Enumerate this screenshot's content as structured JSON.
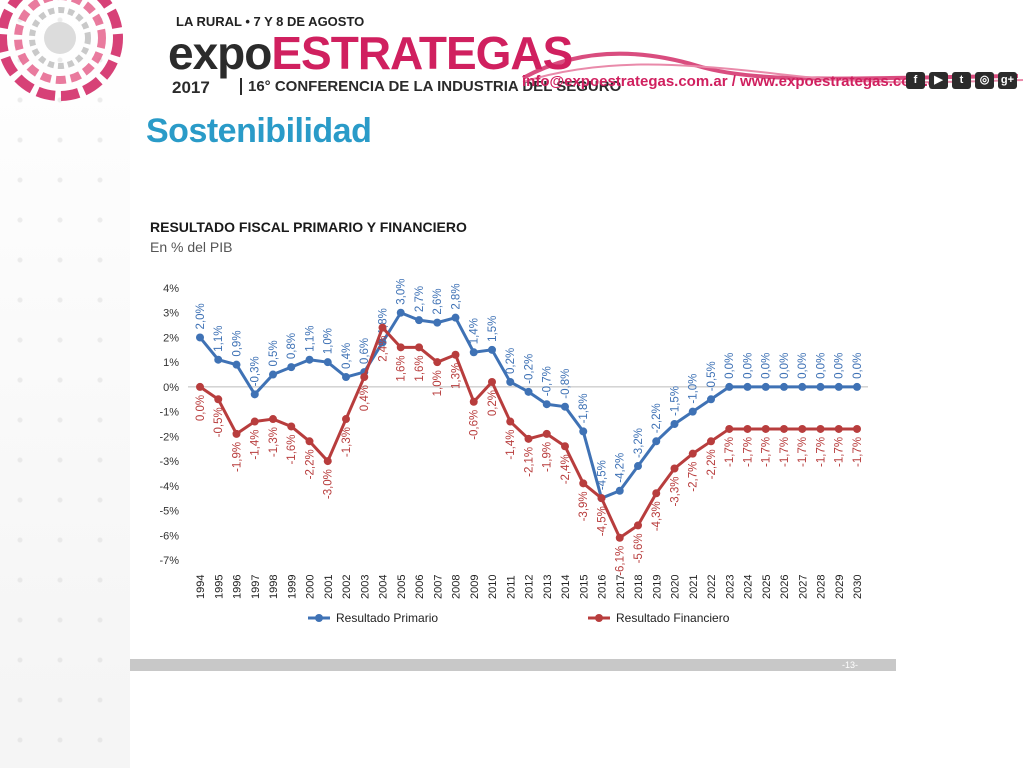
{
  "header": {
    "event_date": "LA RURAL • 7 Y 8 DE AGOSTO",
    "brand_expo": "expo",
    "brand_estrategas": "ESTRATEGAS",
    "year": "2017",
    "subtitle": "16° CONFERENCIA DE LA INDUSTRIA DEL SEGURO",
    "contact": "info@expoestrategas.com.ar / www.expoestrategas.com.ar",
    "social_icons": [
      "facebook-icon",
      "youtube-icon",
      "twitter-icon",
      "instagram-icon",
      "googleplus-icon"
    ],
    "social_glyphs": [
      "f",
      "▶",
      "t",
      "◎",
      "g+"
    ]
  },
  "page_title": "Sostenibilidad",
  "footer": {
    "page_number": "-13-"
  },
  "colors": {
    "primary_series": "#3f72b5",
    "financial_series": "#b83d3d",
    "title": "#2a9bc8",
    "brand": "#d0205f"
  },
  "chart_data": {
    "type": "line",
    "title": "RESULTADO FISCAL PRIMARIO Y FINANCIERO",
    "subtitle": "En % del PIB",
    "xlabel": "",
    "ylabel": "",
    "ylim": [
      -7,
      4
    ],
    "yticks": [
      "4%",
      "3%",
      "2%",
      "1%",
      "0%",
      "-1%",
      "-2%",
      "-3%",
      "-4%",
      "-5%",
      "-6%",
      "-7%"
    ],
    "grid": false,
    "legend": "bottom",
    "categories": [
      "1994",
      "1995",
      "1996",
      "1997",
      "1998",
      "1999",
      "2000",
      "2001",
      "2002",
      "2003",
      "2004",
      "2005",
      "2006",
      "2007",
      "2008",
      "2009",
      "2010",
      "2011",
      "2012",
      "2013",
      "2014",
      "2015",
      "2016",
      "2017",
      "2018",
      "2019",
      "2020",
      "2021",
      "2022",
      "2023",
      "2024",
      "2025",
      "2026",
      "2027",
      "2028",
      "2029",
      "2030"
    ],
    "series": [
      {
        "name": "Resultado Primario",
        "values": [
          2.0,
          1.1,
          0.9,
          -0.3,
          0.5,
          0.8,
          1.1,
          1.0,
          0.4,
          0.6,
          1.8,
          3.0,
          2.7,
          2.6,
          2.8,
          1.4,
          1.5,
          0.2,
          -0.2,
          -0.7,
          -0.8,
          -1.8,
          -4.5,
          -4.2,
          -3.2,
          -2.2,
          -1.5,
          -1.0,
          -0.5,
          0.0,
          0.0,
          0.0,
          0.0,
          0.0,
          0.0,
          0.0,
          0.0
        ],
        "labels": [
          "2,0%",
          "1,1%",
          "0,9%",
          "-0,3%",
          "0,5%",
          "0,8%",
          "1,1%",
          "1,0%",
          "0,4%",
          "0,6%",
          "1,8%",
          "3,0%",
          "2,7%",
          "2,6%",
          "2,8%",
          "1,4%",
          "1,5%",
          "0,2%",
          "-0,2%",
          "-0,7%",
          "-0,8%",
          "-1,8%",
          "-4,5%",
          "-4,2%",
          "-3,2%",
          "-2,2%",
          "-1,5%",
          "-1,0%",
          "-0,5%",
          "0,0%",
          "0,0%",
          "0,0%",
          "0,0%",
          "0,0%",
          "0,0%",
          "0,0%",
          "0,0%"
        ]
      },
      {
        "name": "Resultado Financiero",
        "values": [
          0.0,
          -0.5,
          -1.9,
          -1.4,
          -1.3,
          -1.6,
          -2.2,
          -3.0,
          -1.3,
          0.4,
          2.4,
          1.6,
          1.6,
          1.0,
          1.3,
          -0.6,
          0.2,
          -1.4,
          -2.1,
          -1.9,
          -2.4,
          -3.9,
          -4.5,
          -6.1,
          -5.6,
          -4.3,
          -3.3,
          -2.7,
          -2.2,
          -1.7,
          -1.7,
          -1.7,
          -1.7,
          -1.7,
          -1.7,
          -1.7,
          -1.7
        ],
        "labels": [
          "0,0%",
          "-0,5%",
          "-1,9%",
          "-1,4%",
          "-1,3%",
          "-1,6%",
          "-2,2%",
          "-3,0%",
          "-1,3%",
          "0,4%",
          "2,4%",
          "1,6%",
          "1,6%",
          "1,0%",
          "1,3%",
          "-0,6%",
          "0,2%",
          "-1,4%",
          "-2,1%",
          "-1,9%",
          "-2,4%",
          "-3,9%",
          "-4,5%",
          "-6,1%",
          "-5,6%",
          "-4,3%",
          "-3,3%",
          "-2,7%",
          "-2,2%",
          "-1,7%",
          "-1,7%",
          "-1,7%",
          "-1,7%",
          "-1,7%",
          "-1,7%",
          "-1,7%",
          "-1,7%"
        ]
      }
    ]
  }
}
